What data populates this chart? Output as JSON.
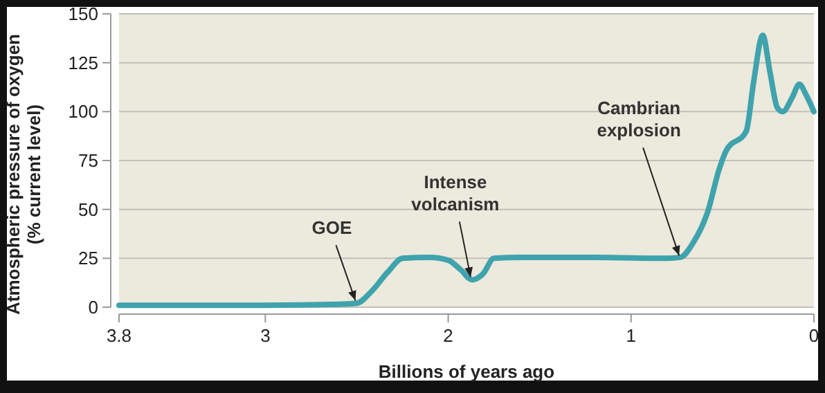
{
  "chart_data": {
    "type": "line",
    "xlabel": "Billions of years ago",
    "ylabel": "Atmospheric pressure of oxygen\n(% current level)",
    "x": [
      3.8,
      3.0,
      2.6,
      2.5,
      2.42,
      2.33,
      2.25,
      2.1,
      2.0,
      1.93,
      1.87,
      1.81,
      1.75,
      1.6,
      1.2,
      0.8,
      0.73,
      0.66,
      0.58,
      0.52,
      0.48,
      0.37,
      0.33,
      0.28,
      0.24,
      0.2,
      0.17,
      0.12,
      0.08,
      0.04,
      0
    ],
    "series": [
      {
        "color": "#3fa3ad",
        "values": [
          1,
          1,
          1.5,
          2,
          8,
          18,
          25,
          25.5,
          24,
          19,
          14,
          17,
          25,
          25.5,
          25.5,
          25,
          25.5,
          33,
          49,
          70,
          80,
          90,
          115,
          139,
          120,
          102,
          100,
          107,
          114,
          108,
          100
        ]
      }
    ],
    "xlim": [
      3.8,
      0
    ],
    "xticks": [
      3.8,
      3,
      2,
      1,
      0
    ],
    "ylim": [
      0,
      150
    ],
    "yticks": [
      0,
      25,
      50,
      75,
      100,
      125,
      150
    ],
    "grid": "y",
    "line_style": "solid",
    "marker": "none",
    "annotations": [
      {
        "text": "GOE",
        "x": 2.5,
        "y": 2
      },
      {
        "text": "Intense volcanism",
        "x": 1.87,
        "y": 14
      },
      {
        "text": "Cambrian explosion",
        "x": 0.73,
        "y": 25
      }
    ]
  }
}
